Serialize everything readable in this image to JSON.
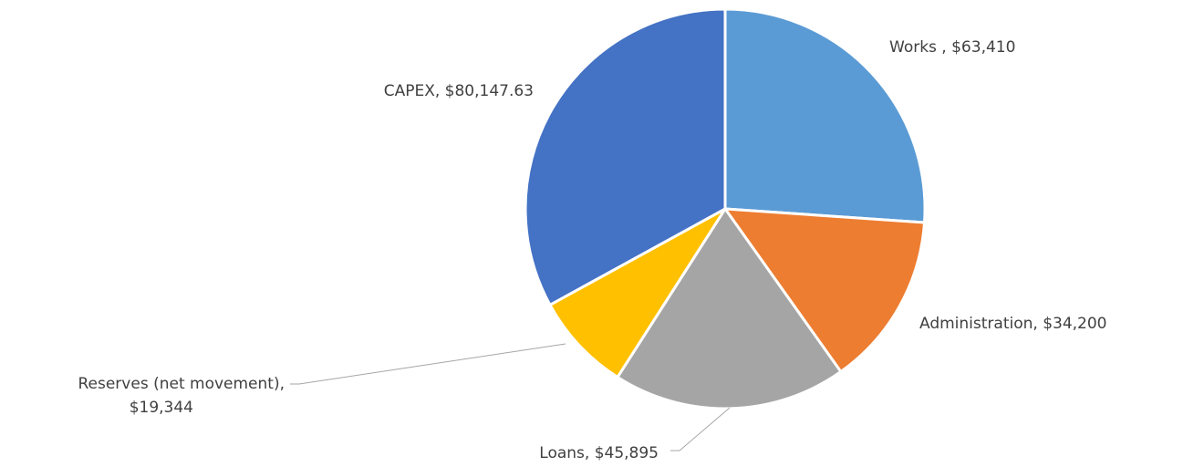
{
  "chart_data": {
    "type": "pie",
    "values": [
      63410,
      34200,
      45895,
      19344,
      80147.63
    ],
    "value_labels": [
      "Works , $63,410",
      "Administration, $34,200",
      "Loans, $45,895",
      "Reserves (net movement),\n$19,344",
      "CAPEX, $80,147.63"
    ],
    "colors": [
      "#5b9bd5",
      "#ed7d31",
      "#a5a5a5",
      "#ffc000",
      "#4472c4"
    ]
  }
}
